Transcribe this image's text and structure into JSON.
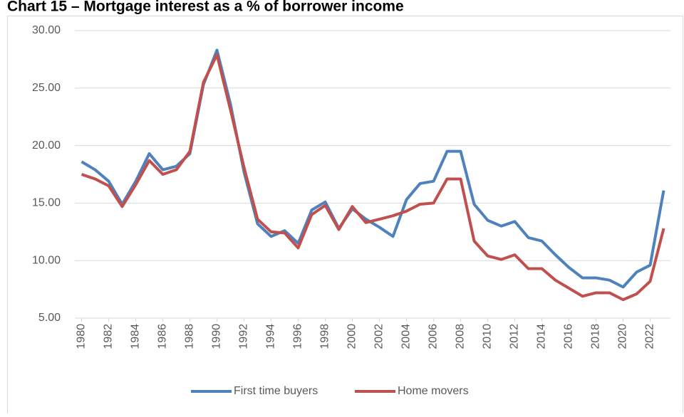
{
  "chart_data": {
    "type": "line",
    "title": "Chart 15 – Mortgage interest as a % of borrower income",
    "x": [
      1980,
      1981,
      1982,
      1983,
      1984,
      1985,
      1986,
      1987,
      1988,
      1989,
      1990,
      1991,
      1992,
      1993,
      1994,
      1995,
      1996,
      1997,
      1998,
      1999,
      2000,
      2001,
      2002,
      2003,
      2004,
      2005,
      2006,
      2007,
      2008,
      2009,
      2010,
      2011,
      2012,
      2013,
      2014,
      2015,
      2016,
      2017,
      2018,
      2019,
      2020,
      2021,
      2022,
      2023
    ],
    "xlim": [
      1979.5,
      2023.5
    ],
    "xticks": [
      1980,
      1982,
      1984,
      1986,
      1988,
      1990,
      1992,
      1994,
      1996,
      1998,
      2000,
      2002,
      2004,
      2006,
      2008,
      2010,
      2012,
      2014,
      2016,
      2018,
      2020,
      2022
    ],
    "ylim": [
      5,
      30
    ],
    "yticks": [
      {
        "value": 5,
        "label": "5.00"
      },
      {
        "value": 10,
        "label": "10.00"
      },
      {
        "value": 15,
        "label": "15.00"
      },
      {
        "value": 20,
        "label": "20.00"
      },
      {
        "value": 25,
        "label": "25.00"
      },
      {
        "value": 30,
        "label": "30.00"
      }
    ],
    "grid": true,
    "legend": "bottom",
    "series": [
      {
        "name": "First time buyers",
        "color": "#4f81bd",
        "values": [
          18.6,
          17.9,
          16.9,
          14.9,
          16.9,
          19.3,
          17.9,
          18.2,
          19.3,
          25.3,
          28.3,
          23.6,
          17.7,
          13.2,
          12.1,
          12.6,
          11.5,
          14.4,
          15.1,
          12.8,
          14.5,
          13.6,
          12.9,
          12.1,
          15.3,
          16.7,
          16.9,
          19.5,
          19.5,
          14.9,
          13.5,
          13.0,
          13.4,
          12.0,
          11.7,
          10.5,
          9.4,
          8.5,
          8.5,
          8.3,
          7.7,
          9.0,
          9.6,
          16.1
        ]
      },
      {
        "name": "Home movers",
        "color": "#c0504d",
        "values": [
          17.5,
          17.1,
          16.5,
          14.7,
          16.6,
          18.7,
          17.5,
          17.9,
          19.5,
          25.5,
          27.9,
          23.1,
          18.1,
          13.6,
          12.5,
          12.4,
          11.1,
          14.0,
          14.8,
          12.7,
          14.7,
          13.3,
          13.6,
          13.9,
          14.3,
          14.9,
          15.0,
          17.1,
          17.1,
          11.7,
          10.4,
          10.1,
          10.5,
          9.3,
          9.3,
          8.3,
          7.6,
          6.9,
          7.2,
          7.2,
          6.6,
          7.1,
          8.2,
          12.8
        ]
      }
    ]
  }
}
